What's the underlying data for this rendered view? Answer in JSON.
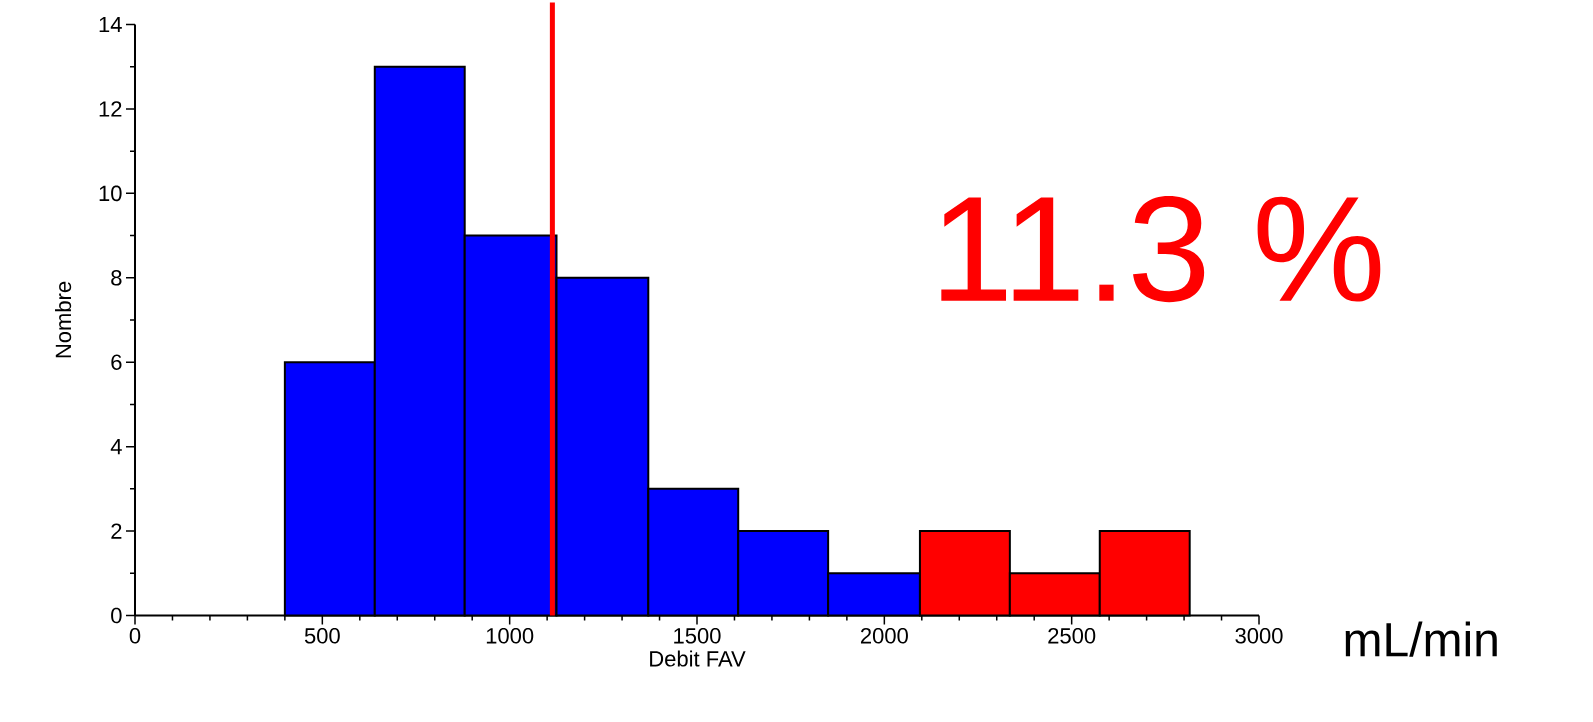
{
  "chart_data": {
    "type": "histogram",
    "xlabel": "Debit FAV",
    "ylabel": "Nombre",
    "bins": [
      400,
      640,
      880,
      1125,
      1370,
      1610,
      1850,
      2095,
      2335,
      2575,
      2815
    ],
    "values": [
      6,
      13,
      9,
      8,
      3,
      2,
      1,
      2,
      1,
      2
    ],
    "colors": [
      "#0000ff",
      "#0000ff",
      "#0000ff",
      "#0000ff",
      "#0000ff",
      "#0000ff",
      "#0000ff",
      "#ff0000",
      "#ff0000",
      "#ff0000"
    ],
    "xlim": [
      0,
      3000
    ],
    "xticks": [
      0,
      500,
      1000,
      1500,
      2000,
      2500,
      3000
    ],
    "ylim": [
      0,
      14
    ],
    "yticks": [
      0,
      2,
      4,
      6,
      8,
      10,
      12,
      14
    ],
    "ref_lines": [
      {
        "axis": "x",
        "value": 1114,
        "color": "#ff0000"
      }
    ],
    "annotations": [
      "11.3 %",
      "mL/min"
    ],
    "grid": false
  }
}
